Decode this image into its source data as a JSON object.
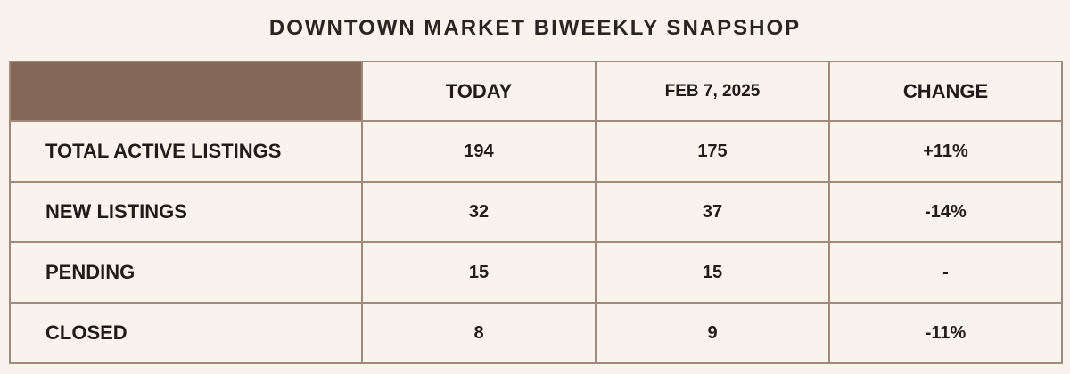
{
  "title": "DOWNTOWN MARKET BIWEEKLY SNAPSHOP",
  "colors": {
    "background": "#f8f4ed",
    "header_corner": "#846757",
    "border": "#a08a7c"
  },
  "table": {
    "columns": [
      "",
      "TODAY",
      "FEB 7, 2025",
      "CHANGE"
    ],
    "rows": [
      [
        "TOTAL ACTIVE LISTINGS",
        "194",
        "175",
        "+11%"
      ],
      [
        "NEW LISTINGS",
        "32",
        "37",
        "-14%"
      ],
      [
        "PENDING",
        "15",
        "15",
        "-"
      ],
      [
        "CLOSED",
        "8",
        "9",
        "-11%"
      ]
    ]
  }
}
